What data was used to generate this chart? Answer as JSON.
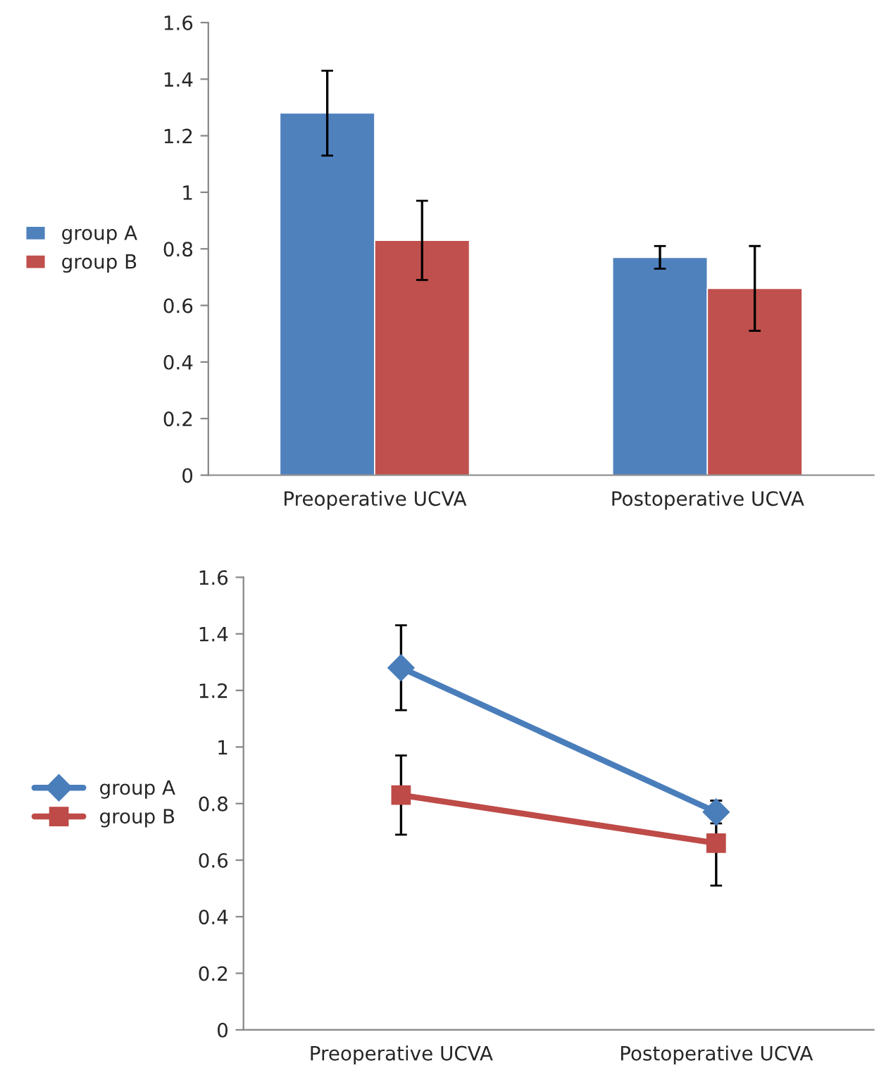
{
  "chart_data": [
    {
      "type": "bar",
      "categories": [
        "Preoperative UCVA",
        "Postoperative UCVA"
      ],
      "series": [
        {
          "name": "group A",
          "color": "#4f81bd",
          "values": [
            1.28,
            0.77
          ],
          "errors": [
            0.15,
            0.04
          ]
        },
        {
          "name": "group B",
          "color": "#c0504d",
          "values": [
            0.83,
            0.66
          ],
          "errors": [
            0.14,
            0.15
          ]
        }
      ],
      "ylim": [
        0,
        1.6
      ],
      "yticks": [
        0,
        0.2,
        0.4,
        0.6,
        0.8,
        1,
        1.2,
        1.4,
        1.6
      ],
      "grid": false,
      "legend": "left"
    },
    {
      "type": "line",
      "categories": [
        "Preoperative UCVA",
        "Postoperative UCVA"
      ],
      "series": [
        {
          "name": "group A",
          "color": "#4a7ebb",
          "values": [
            1.28,
            0.77
          ],
          "errors": [
            0.15,
            0.04
          ],
          "marker": "diamond"
        },
        {
          "name": "group B",
          "color": "#be4b48",
          "values": [
            0.83,
            0.66
          ],
          "errors": [
            0.14,
            0.15
          ],
          "marker": "square"
        }
      ],
      "ylim": [
        0,
        1.6
      ],
      "yticks": [
        0,
        0.2,
        0.4,
        0.6,
        0.8,
        1,
        1.2,
        1.4,
        1.6
      ],
      "grid": false,
      "legend": "left",
      "line_style": "solid"
    }
  ]
}
